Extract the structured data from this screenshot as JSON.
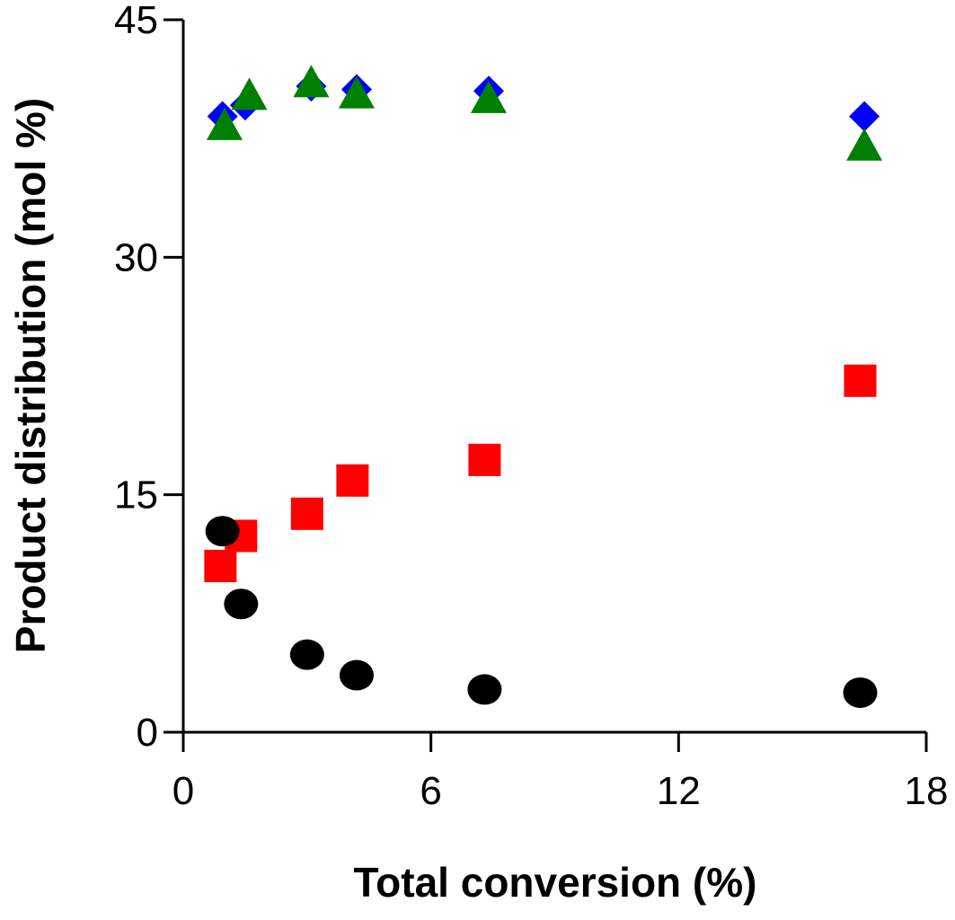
{
  "chart_data": {
    "type": "scatter",
    "title": "",
    "xlabel": "Total conversion (%)",
    "ylabel": "Product distribution (mol %)",
    "xlim": [
      0,
      18
    ],
    "ylim": [
      0,
      45
    ],
    "xticks": [
      0,
      6,
      12,
      18
    ],
    "yticks": [
      0,
      15,
      30,
      45
    ],
    "xtick_labels": [
      "0",
      "6",
      "12",
      "18"
    ],
    "ytick_labels": [
      "0",
      "15",
      "30",
      "45"
    ],
    "grid": false,
    "legend": "none",
    "series": [
      {
        "name": "diamond series",
        "marker": "diamond",
        "color": "#0000FF",
        "x": [
          0.95,
          1.5,
          3.1,
          4.2,
          7.4,
          16.5
        ],
        "y": [
          38.9,
          39.6,
          40.8,
          40.6,
          40.5,
          38.9
        ]
      },
      {
        "name": "triangle series",
        "marker": "triangle",
        "color": "#008000",
        "x": [
          1.0,
          1.6,
          3.1,
          4.2,
          7.4,
          16.5
        ],
        "y": [
          38.2,
          40.1,
          40.9,
          40.2,
          39.9,
          36.9
        ]
      },
      {
        "name": "square series",
        "marker": "square",
        "color": "#FF0000",
        "x": [
          0.9,
          1.4,
          3.0,
          4.1,
          7.3,
          16.4
        ],
        "y": [
          10.5,
          12.4,
          13.8,
          15.9,
          17.2,
          22.2
        ]
      },
      {
        "name": "circle series",
        "marker": "circle",
        "color": "#000000",
        "x": [
          0.95,
          1.4,
          3.0,
          4.2,
          7.3,
          16.4
        ],
        "y": [
          12.7,
          8.1,
          4.9,
          3.6,
          2.7,
          2.5
        ]
      }
    ]
  }
}
